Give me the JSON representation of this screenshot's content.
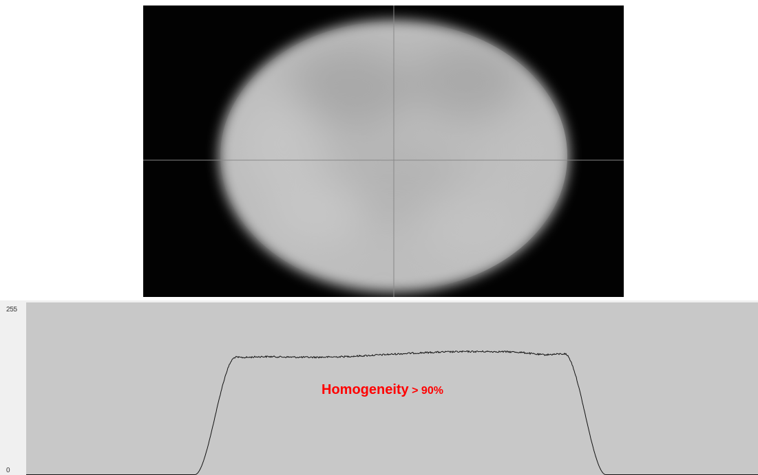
{
  "beam_image": {
    "background_color": "#020202",
    "spot_color": "#bdbdbd",
    "crosshair_color": "#888888"
  },
  "profile": {
    "y_max_label": "255",
    "y_min_label": "0",
    "background_color": "#c8c8c8",
    "line_color": "#111111",
    "annotation_main": "Homogeneity",
    "annotation_value": "> 90%",
    "annotation_color": "#ff0000"
  }
}
